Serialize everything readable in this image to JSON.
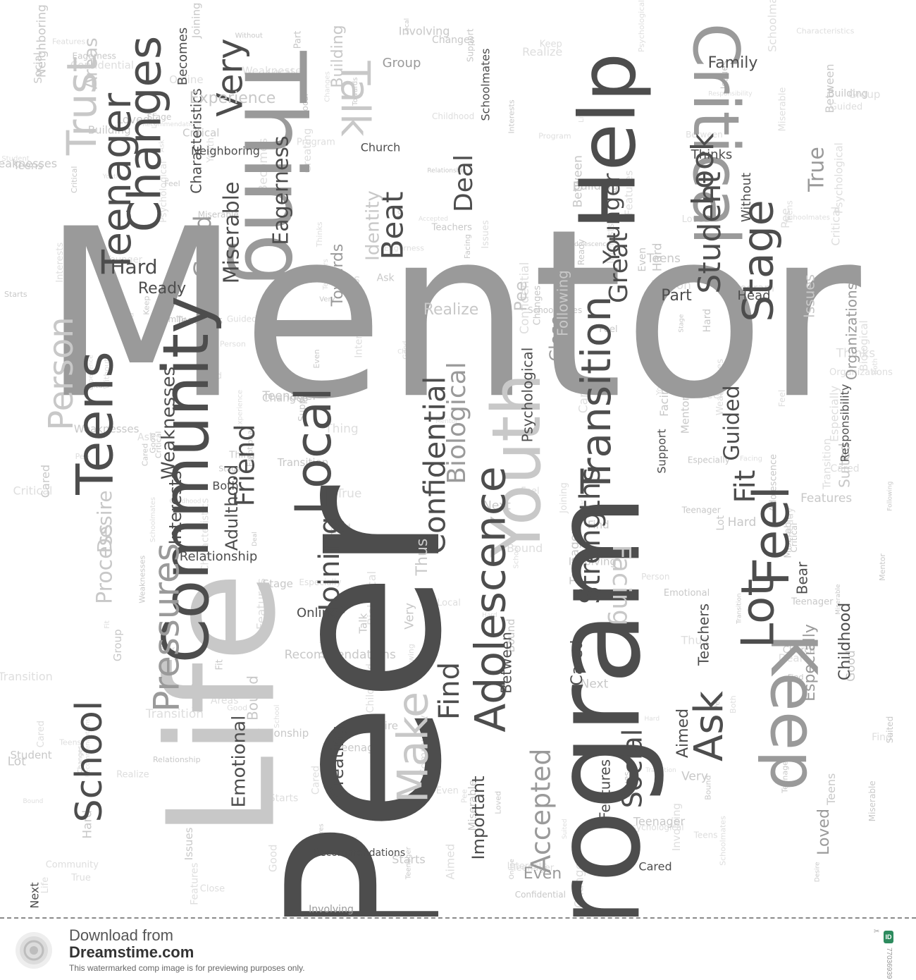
{
  "colors": {
    "dark": "#4d4d4d",
    "mid": "#9a9a9a",
    "light": "#c8c8c8",
    "faint": "#dedede",
    "background": "#ffffff",
    "id_badge": "#2d8b5e"
  },
  "word_cloud": {
    "main_words": [
      {
        "text": "Mentor",
        "tone": "mid"
      },
      {
        "text": "Peer",
        "tone": "dark"
      },
      {
        "text": "Program",
        "tone": "dark"
      },
      {
        "text": "Life",
        "tone": "light"
      },
      {
        "text": "Community",
        "tone": "dark"
      },
      {
        "text": "Thing",
        "tone": "mid"
      },
      {
        "text": "Help",
        "tone": "dark"
      },
      {
        "text": "Youth",
        "tone": "light"
      },
      {
        "text": "Critical",
        "tone": "mid"
      },
      {
        "text": "Changes",
        "tone": "dark"
      },
      {
        "text": "Teens",
        "tone": "dark"
      },
      {
        "text": "Local",
        "tone": "dark"
      },
      {
        "text": "Teenager",
        "tone": "dark"
      },
      {
        "text": "Transition",
        "tone": "dark"
      },
      {
        "text": "Stage",
        "tone": "dark"
      },
      {
        "text": "Feel",
        "tone": "dark"
      },
      {
        "text": "Keep",
        "tone": "mid"
      },
      {
        "text": "Lot",
        "tone": "dark"
      },
      {
        "text": "Make",
        "tone": "light"
      },
      {
        "text": "Adolescence",
        "tone": "dark"
      },
      {
        "text": "Pressures",
        "tone": "mid"
      },
      {
        "text": "Trust",
        "tone": "light"
      },
      {
        "text": "Talk",
        "tone": "light"
      },
      {
        "text": "School",
        "tone": "dark"
      },
      {
        "text": "Person",
        "tone": "light"
      },
      {
        "text": "Ask",
        "tone": "dark"
      },
      {
        "text": "Confidential",
        "tone": "dark"
      },
      {
        "text": "Student",
        "tone": "dark"
      },
      {
        "text": "Very",
        "tone": "dark"
      },
      {
        "text": "Look",
        "tone": "dark"
      },
      {
        "text": "Joining",
        "tone": "dark"
      },
      {
        "text": "Friend",
        "tone": "dark"
      },
      {
        "text": "Accepted",
        "tone": "mid"
      },
      {
        "text": "Strengths",
        "tone": "dark"
      },
      {
        "text": "Social",
        "tone": "dark"
      },
      {
        "text": "Fit",
        "tone": "dark"
      },
      {
        "text": "Find",
        "tone": "dark"
      },
      {
        "text": "Biological",
        "tone": "mid"
      },
      {
        "text": "Facing",
        "tone": "light"
      },
      {
        "text": "Guided",
        "tone": "dark"
      },
      {
        "text": "Beat",
        "tone": "dark"
      },
      {
        "text": "Deal",
        "tone": "dark"
      },
      {
        "text": "Great",
        "tone": "dark"
      },
      {
        "text": "Younger",
        "tone": "dark"
      },
      {
        "text": "Identity",
        "tone": "light"
      },
      {
        "text": "True",
        "tone": "mid"
      },
      {
        "text": "Eagerness",
        "tone": "dark"
      },
      {
        "text": "Miserable",
        "tone": "dark"
      },
      {
        "text": "Good",
        "tone": "mid"
      },
      {
        "text": "Hard",
        "tone": "dark"
      },
      {
        "text": "Weaknesses",
        "tone": "dark"
      },
      {
        "text": "Interests",
        "tone": "dark"
      },
      {
        "text": "Adulthood",
        "tone": "dark"
      },
      {
        "text": "Desire",
        "tone": "light"
      },
      {
        "text": "Process",
        "tone": "light"
      },
      {
        "text": "Emotional",
        "tone": "dark"
      },
      {
        "text": "Creating",
        "tone": "dark"
      },
      {
        "text": "Important",
        "tone": "dark"
      },
      {
        "text": "Relationship",
        "tone": "dark"
      },
      {
        "text": "Characteristics",
        "tone": "dark"
      },
      {
        "text": "Cared",
        "tone": "dark"
      },
      {
        "text": "Thus",
        "tone": "light"
      },
      {
        "text": "Childhood",
        "tone": "dark"
      },
      {
        "text": "Towards",
        "tone": "mid"
      },
      {
        "text": "Experience",
        "tone": "light"
      },
      {
        "text": "Areas",
        "tone": "light"
      },
      {
        "text": "Building",
        "tone": "light"
      },
      {
        "text": "Close",
        "tone": "mid"
      },
      {
        "text": "Pee",
        "tone": "light"
      },
      {
        "text": "Becomes",
        "tone": "dark"
      },
      {
        "text": "Psychological",
        "tone": "dark"
      },
      {
        "text": "Realize",
        "tone": "light"
      },
      {
        "text": "Bound",
        "tone": "light"
      },
      {
        "text": "Following",
        "tone": "light"
      },
      {
        "text": "Ready",
        "tone": "dark"
      },
      {
        "text": "Part",
        "tone": "dark"
      },
      {
        "text": "Aimed",
        "tone": "dark"
      },
      {
        "text": "Bear",
        "tone": "dark"
      },
      {
        "text": "Especially",
        "tone": "mid"
      },
      {
        "text": "Teachers",
        "tone": "dark"
      },
      {
        "text": "Between",
        "tone": "dark"
      },
      {
        "text": "Features",
        "tone": "dark"
      },
      {
        "text": "Even",
        "tone": "mid"
      },
      {
        "text": "Loved",
        "tone": "mid"
      },
      {
        "text": "Online",
        "tone": "dark"
      },
      {
        "text": "Suited",
        "tone": "light"
      },
      {
        "text": "Family",
        "tone": "dark"
      },
      {
        "text": "Organizations",
        "tone": "mid"
      },
      {
        "text": "Neighboring",
        "tone": "dark"
      },
      {
        "text": "Responsibility",
        "tone": "dark"
      },
      {
        "text": "Church",
        "tone": "dark"
      },
      {
        "text": "Head",
        "tone": "dark"
      },
      {
        "text": "Thinks",
        "tone": "dark"
      },
      {
        "text": "Without",
        "tone": "dark"
      },
      {
        "text": "Issues",
        "tone": "light"
      },
      {
        "text": "Group",
        "tone": "mid"
      },
      {
        "text": "Next",
        "tone": "dark"
      },
      {
        "text": "Both",
        "tone": "dark"
      },
      {
        "text": "Starts",
        "tone": "light"
      },
      {
        "text": "Support",
        "tone": "dark"
      },
      {
        "text": "Schoolmates",
        "tone": "dark"
      },
      {
        "text": "Recommendations",
        "tone": "dark"
      },
      {
        "text": "Involving",
        "tone": "mid"
      },
      {
        "text": "Cared",
        "tone": "dark"
      }
    ]
  },
  "footer": {
    "download_label": "Download from",
    "site_name": "Dreamstime.com",
    "watermark_note": "This watermarked comp image is for previewing purposes only.",
    "id_label": "ID",
    "image_id": "77036939",
    "copyright": "© Ivan Grinko | Dreamstime.com"
  }
}
